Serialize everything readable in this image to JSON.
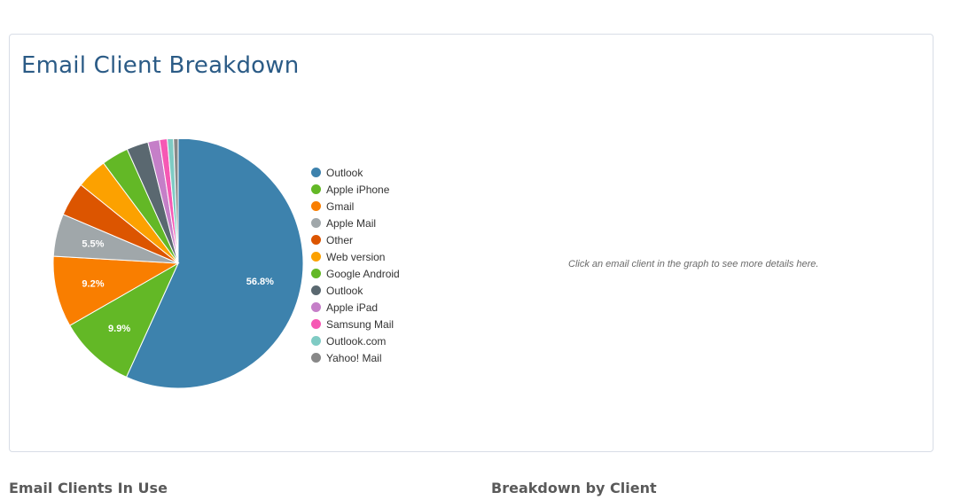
{
  "card": {
    "title": "Email Client Breakdown",
    "hint": "Click an email client in the graph to see more details here."
  },
  "sections": {
    "left_heading": "Email Clients In Use",
    "right_heading": "Breakdown by Client"
  },
  "chart_data": {
    "type": "pie",
    "title": "Email Client Breakdown",
    "legend_position": "right",
    "slices": [
      {
        "label": "Outlook",
        "value": 56.8,
        "color": "#3d82ad",
        "data_label": "56.8%"
      },
      {
        "label": "Apple iPhone",
        "value": 9.9,
        "color": "#63b826",
        "data_label": "9.9%"
      },
      {
        "label": "Gmail",
        "value": 9.2,
        "color": "#f97e00",
        "data_label": "9.2%"
      },
      {
        "label": "Apple Mail",
        "value": 5.5,
        "color": "#a0a7aa",
        "data_label": "5.5%"
      },
      {
        "label": "Other",
        "value": 4.4,
        "color": "#dc5500",
        "data_label": ""
      },
      {
        "label": "Web version",
        "value": 4.0,
        "color": "#fca100",
        "data_label": ""
      },
      {
        "label": "Google Android",
        "value": 3.5,
        "color": "#63b826",
        "data_label": ""
      },
      {
        "label": "Outlook",
        "value": 2.8,
        "color": "#5a6870",
        "data_label": ""
      },
      {
        "label": "Apple iPad",
        "value": 1.5,
        "color": "#c57fc8",
        "data_label": ""
      },
      {
        "label": "Samsung Mail",
        "value": 1.0,
        "color": "#f658b4",
        "data_label": ""
      },
      {
        "label": "Outlook.com",
        "value": 0.8,
        "color": "#7fcbc4",
        "data_label": ""
      },
      {
        "label": "Yahoo! Mail",
        "value": 0.6,
        "color": "#888888",
        "data_label": ""
      }
    ]
  }
}
